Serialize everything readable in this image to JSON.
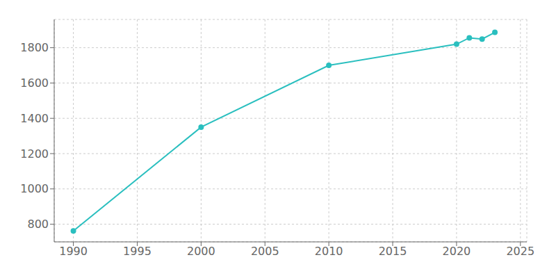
{
  "chart_data": {
    "type": "line",
    "x": [
      1990,
      2000,
      2010,
      2020,
      2021,
      2022,
      2023
    ],
    "values": [
      762,
      1350,
      1700,
      1820,
      1856,
      1849,
      1887
    ],
    "color": "#2abfbf",
    "marker": "circle",
    "xlim": [
      1988.5,
      2025.5
    ],
    "ylim": [
      700,
      1960
    ],
    "xticks": [
      1990,
      1995,
      2000,
      2005,
      2010,
      2015,
      2020,
      2025
    ],
    "yticks": [
      800,
      1000,
      1200,
      1400,
      1600,
      1800
    ],
    "grid": true
  }
}
